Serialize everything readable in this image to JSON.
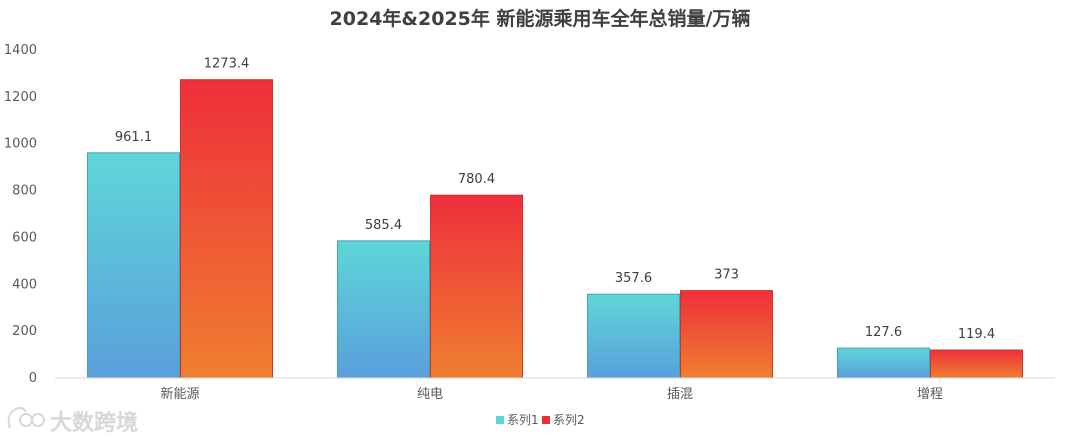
{
  "chart_data": {
    "type": "bar",
    "title": "2024年&2025年 新能源乘用车全年总销量/万辆",
    "categories": [
      "新能源",
      "纯电",
      "插混",
      "增程"
    ],
    "series": [
      {
        "name": "系列1",
        "values": [
          961.1,
          585.4,
          357.6,
          127.6
        ],
        "color_top": "#5ed6d8",
        "color_bottom": "#5a9fdb"
      },
      {
        "name": "系列2",
        "values": [
          1273.4,
          780.4,
          373,
          119.4
        ],
        "color_top": "#ee2f3b",
        "color_bottom": "#ef7f30"
      }
    ],
    "data_labels": [
      [
        "961.1",
        "585.4",
        "357.6",
        "127.6"
      ],
      [
        "1273.4",
        "780.4",
        "373",
        "119.4"
      ]
    ],
    "yticks": [
      "0",
      "200",
      "400",
      "600",
      "800",
      "1000",
      "1200",
      "1400"
    ],
    "ylim": [
      0,
      1400
    ],
    "grid": false,
    "legend_position": "bottom-center"
  },
  "watermark": {
    "text": "大数跨境"
  }
}
